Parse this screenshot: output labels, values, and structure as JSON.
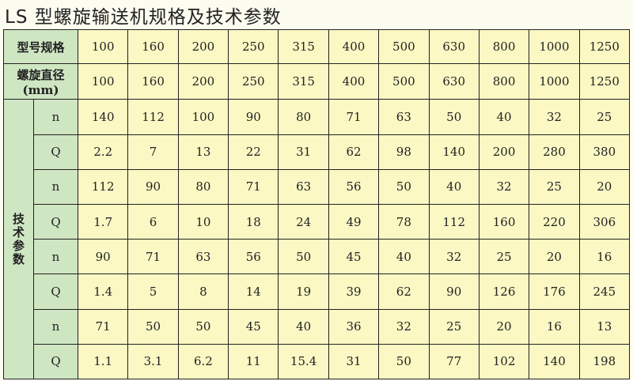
{
  "title": "LS 型螺旋输送机规格及技术参数",
  "colors": {
    "label_bg": "#cfe6c2",
    "cell_bg": "#fbf8c4",
    "border": "#222222"
  },
  "table": {
    "model_label": "型号规格",
    "models": [
      "100",
      "160",
      "200",
      "250",
      "315",
      "400",
      "500",
      "630",
      "800",
      "1000",
      "1250"
    ],
    "diameter_label": "螺旋直径(mm)",
    "diameters": [
      "100",
      "160",
      "200",
      "250",
      "315",
      "400",
      "500",
      "630",
      "800",
      "1000",
      "1250"
    ],
    "tech_label": "技术参数",
    "rows": [
      {
        "label": "n",
        "values": [
          "140",
          "112",
          "100",
          "90",
          "80",
          "71",
          "63",
          "50",
          "40",
          "32",
          "25"
        ]
      },
      {
        "label": "Q",
        "values": [
          "2.2",
          "7",
          "13",
          "22",
          "31",
          "62",
          "98",
          "140",
          "200",
          "280",
          "380"
        ]
      },
      {
        "label": "n",
        "values": [
          "112",
          "90",
          "80",
          "71",
          "63",
          "56",
          "50",
          "40",
          "32",
          "25",
          "20"
        ]
      },
      {
        "label": "Q",
        "values": [
          "1.7",
          "6",
          "10",
          "18",
          "24",
          "49",
          "78",
          "112",
          "160",
          "220",
          "306"
        ]
      },
      {
        "label": "n",
        "values": [
          "90",
          "71",
          "63",
          "56",
          "50",
          "45",
          "40",
          "32",
          "25",
          "20",
          "16"
        ]
      },
      {
        "label": "Q",
        "values": [
          "1.4",
          "5",
          "8",
          "14",
          "19",
          "39",
          "62",
          "90",
          "126",
          "176",
          "245"
        ]
      },
      {
        "label": "n",
        "values": [
          "71",
          "50",
          "50",
          "45",
          "40",
          "36",
          "32",
          "25",
          "20",
          "16",
          "13"
        ]
      },
      {
        "label": "Q",
        "values": [
          "1.1",
          "3.1",
          "6.2",
          "11",
          "15.4",
          "31",
          "50",
          "77",
          "102",
          "140",
          "198"
        ]
      }
    ]
  }
}
